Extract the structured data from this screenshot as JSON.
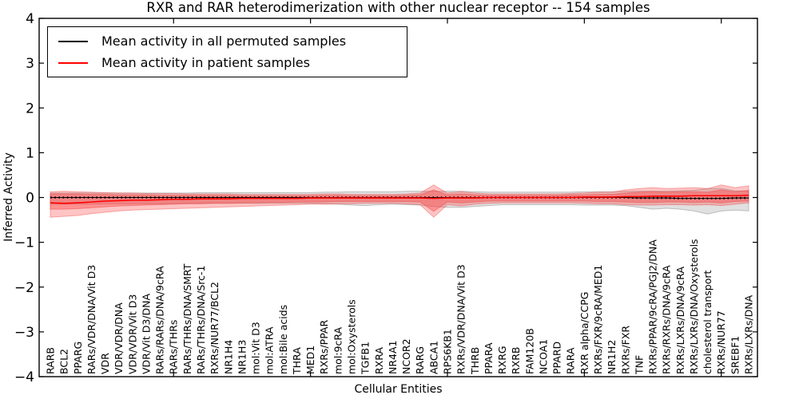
{
  "chart_data": {
    "type": "line",
    "title": "RXR and RAR heterodimerization with other nuclear receptor -- 154 samples",
    "xlabel": "Cellular Entities",
    "ylabel": "Inferred Activity",
    "ylim": [
      -4,
      4
    ],
    "grid": false,
    "yticks": {
      "values": [
        4,
        3,
        2,
        1,
        0,
        -1,
        -2,
        -3,
        -4
      ],
      "labels": [
        "4",
        "3",
        "2",
        "1",
        "0",
        "−1",
        "−2",
        "−3",
        "−4"
      ]
    },
    "major_x_tick_indices": [
      9,
      19,
      29,
      39,
      49
    ],
    "categories": [
      "RARB",
      "BCL2",
      "PPARG",
      "RARs/VDR/DNA/Vit D3",
      "VDR",
      "VDR/VDR/DNA",
      "VDR/VDR/Vit D3",
      "VDR/Vit D3/DNA",
      "RARs/RARs/DNA/9cRA",
      "RARs/THRs",
      "RARs/THRs/DNA/SMRT",
      "RARs/THRs/DNA/Src-1",
      "RXRs/NUR77/BCL2",
      "NR1H4",
      "NR1H3",
      "mol:Vit D3",
      "mol:ATRA",
      "mol:Bile acids",
      "THRA",
      "MED1",
      "RXRs/PPAR",
      "mol:9cRA",
      "mol:Oxysterols",
      "TGFB1",
      "RXRA",
      "NR4A1",
      "NCOR2",
      "RARG",
      "ABCA1",
      "RPS6KB1",
      "RXRs/VDR/DNA/Vit D3",
      "THRB",
      "PPARA",
      "RXRG",
      "RXRB",
      "FAM120B",
      "NCOA1",
      "PPARD",
      "RARA",
      "RXR alpha/CCPG",
      "RXRs/FXR/9cRA/MED1",
      "NR1H2",
      "RXRs/FXR",
      "TNF",
      "RXRs/PPAR/9cRA/PGJ2/DNA",
      "RXRs/RXRs/DNA/9cRA",
      "RXRs/LXRs/DNA/9cRA",
      "RXRs/LXRs/DNA/Oxysterols",
      "cholesterol transport",
      "RXRs/NUR77",
      "SREBF1",
      "RXRs/LXRs/DNA"
    ],
    "legend": {
      "position": "upper left",
      "entries": [
        {
          "label": "Mean activity in all permuted samples",
          "color": "#000000"
        },
        {
          "label": "Mean activity in patient samples",
          "color": "#ff0000"
        }
      ]
    },
    "series": [
      {
        "name": "permuted-mean",
        "color": "#000000",
        "width": 1.1,
        "dotted_overlay": true,
        "values": [
          0,
          0,
          0,
          0,
          0,
          0,
          0,
          0,
          0,
          0,
          0,
          0,
          0,
          0,
          0,
          0,
          0,
          0,
          0,
          0,
          0,
          0,
          0,
          0,
          0,
          0,
          0,
          0,
          0,
          0,
          0,
          0,
          0,
          0,
          0,
          0,
          0,
          0,
          0,
          0,
          0,
          0,
          0,
          -0.01,
          -0.01,
          -0.01,
          -0.02,
          -0.02,
          -0.02,
          -0.02,
          -0.01,
          -0.01
        ]
      },
      {
        "name": "patient-mean",
        "color": "#ff0000",
        "width": 1.6,
        "dotted_overlay": false,
        "values": [
          -0.12,
          -0.13,
          -0.12,
          -0.1,
          -0.08,
          -0.07,
          -0.06,
          -0.06,
          -0.05,
          -0.04,
          -0.04,
          -0.03,
          -0.03,
          -0.03,
          -0.02,
          -0.02,
          -0.02,
          -0.02,
          -0.02,
          -0.01,
          -0.01,
          -0.01,
          -0.01,
          -0.01,
          -0.01,
          -0.01,
          -0.01,
          -0.01,
          -0.02,
          -0.01,
          -0.01,
          -0.01,
          0,
          0,
          0,
          0,
          0,
          0,
          0,
          0.01,
          0.01,
          0.01,
          0.02,
          0.02,
          0.03,
          0.03,
          0.03,
          0.04,
          0.04,
          0.04,
          0.04,
          0.05
        ]
      }
    ],
    "bands": [
      {
        "name": "permuted-range",
        "color": "#828282",
        "opacity": 0.25,
        "edge": "#808080",
        "upper": [
          0.1,
          0.1,
          0.1,
          0.1,
          0.1,
          0.1,
          0.1,
          0.1,
          0.1,
          0.1,
          0.1,
          0.11,
          0.11,
          0.11,
          0.11,
          0.11,
          0.11,
          0.11,
          0.11,
          0.11,
          0.12,
          0.12,
          0.13,
          0.13,
          0.13,
          0.13,
          0.14,
          0.14,
          0.14,
          0.14,
          0.14,
          0.13,
          0.12,
          0.12,
          0.12,
          0.12,
          0.12,
          0.12,
          0.12,
          0.13,
          0.13,
          0.13,
          0.14,
          0.14,
          0.14,
          0.14,
          0.15,
          0.16,
          0.2,
          0.2,
          0.15,
          0.14
        ],
        "lower": [
          -0.15,
          -0.15,
          -0.15,
          -0.15,
          -0.14,
          -0.14,
          -0.14,
          -0.14,
          -0.14,
          -0.14,
          -0.13,
          -0.13,
          -0.13,
          -0.13,
          -0.13,
          -0.13,
          -0.13,
          -0.13,
          -0.13,
          -0.13,
          -0.14,
          -0.15,
          -0.17,
          -0.18,
          -0.16,
          -0.15,
          -0.16,
          -0.17,
          -0.2,
          -0.22,
          -0.22,
          -0.2,
          -0.18,
          -0.16,
          -0.16,
          -0.16,
          -0.16,
          -0.16,
          -0.16,
          -0.17,
          -0.17,
          -0.17,
          -0.18,
          -0.22,
          -0.26,
          -0.24,
          -0.26,
          -0.3,
          -0.37,
          -0.3,
          -0.28,
          -0.3
        ]
      },
      {
        "name": "patient-range-outer",
        "color": "#ff3c3c",
        "opacity": 0.3,
        "edge": "#f05050",
        "upper": [
          0.13,
          0.14,
          0.13,
          0.12,
          0.11,
          0.1,
          0.1,
          0.09,
          0.09,
          0.09,
          0.08,
          0.08,
          0.08,
          0.08,
          0.07,
          0.07,
          0.07,
          0.07,
          0.07,
          0.07,
          0.08,
          0.08,
          0.07,
          0.07,
          0.07,
          0.07,
          0.08,
          0.1,
          0.28,
          0.1,
          0.13,
          0.1,
          0.08,
          0.08,
          0.08,
          0.08,
          0.08,
          0.08,
          0.09,
          0.1,
          0.12,
          0.12,
          0.17,
          0.2,
          0.22,
          0.2,
          0.21,
          0.22,
          0.2,
          0.28,
          0.22,
          0.26
        ],
        "lower": [
          -0.44,
          -0.42,
          -0.4,
          -0.36,
          -0.33,
          -0.3,
          -0.28,
          -0.27,
          -0.26,
          -0.25,
          -0.24,
          -0.23,
          -0.22,
          -0.21,
          -0.2,
          -0.19,
          -0.18,
          -0.17,
          -0.16,
          -0.15,
          -0.15,
          -0.14,
          -0.14,
          -0.13,
          -0.13,
          -0.13,
          -0.14,
          -0.16,
          -0.44,
          -0.16,
          -0.19,
          -0.15,
          -0.13,
          -0.12,
          -0.12,
          -0.12,
          -0.12,
          -0.12,
          -0.12,
          -0.13,
          -0.14,
          -0.14,
          -0.16,
          -0.17,
          -0.17,
          -0.16,
          -0.16,
          -0.17,
          -0.16,
          -0.18,
          -0.15,
          -0.12
        ]
      },
      {
        "name": "patient-range-inner",
        "color": "#ff3c3c",
        "opacity": 0.38,
        "edge": "#e84545",
        "upper": [
          0.08,
          0.08,
          0.08,
          0.07,
          0.07,
          0.06,
          0.06,
          0.06,
          0.05,
          0.05,
          0.05,
          0.05,
          0.05,
          0.05,
          0.04,
          0.04,
          0.04,
          0.04,
          0.04,
          0.04,
          0.05,
          0.05,
          0.04,
          0.04,
          0.04,
          0.04,
          0.05,
          0.06,
          0.17,
          0.06,
          0.08,
          0.06,
          0.05,
          0.05,
          0.05,
          0.05,
          0.05,
          0.05,
          0.06,
          0.06,
          0.07,
          0.07,
          0.1,
          0.12,
          0.13,
          0.12,
          0.13,
          0.13,
          0.12,
          0.17,
          0.13,
          0.16
        ],
        "lower": [
          -0.26,
          -0.26,
          -0.25,
          -0.23,
          -0.21,
          -0.19,
          -0.18,
          -0.17,
          -0.16,
          -0.15,
          -0.14,
          -0.14,
          -0.13,
          -0.13,
          -0.12,
          -0.12,
          -0.11,
          -0.11,
          -0.1,
          -0.1,
          -0.1,
          -0.09,
          -0.09,
          -0.09,
          -0.09,
          -0.09,
          -0.09,
          -0.1,
          -0.31,
          -0.1,
          -0.12,
          -0.1,
          -0.08,
          -0.08,
          -0.08,
          -0.08,
          -0.08,
          -0.08,
          -0.08,
          -0.08,
          -0.09,
          -0.09,
          -0.1,
          -0.11,
          -0.11,
          -0.1,
          -0.1,
          -0.11,
          -0.1,
          -0.12,
          -0.09,
          -0.08
        ]
      }
    ]
  }
}
